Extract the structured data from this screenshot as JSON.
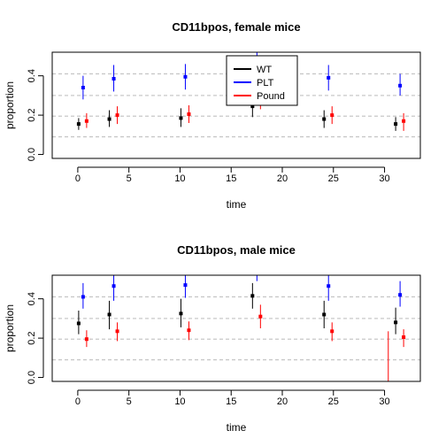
{
  "chart_data": [
    {
      "type": "scatter",
      "title": "CD11bpos, female mice",
      "xlabel": "time",
      "ylabel": "proportion",
      "xlim": [
        -2.5,
        33.5
      ],
      "ylim": [
        -0.02,
        0.52
      ],
      "xticks": [
        0,
        5,
        10,
        15,
        20,
        25,
        30
      ],
      "xtick_labels": [
        "0",
        "5",
        "10",
        "15",
        "20",
        "25",
        "30"
      ],
      "yticks": [
        0.0,
        0.2,
        0.4
      ],
      "ytick_labels": [
        "0.0",
        "0.2",
        "0.4"
      ],
      "hlines": [
        0.09,
        0.195,
        0.3,
        0.41
      ],
      "legend": {
        "placement": "top-center",
        "entries": [
          {
            "name": "WT",
            "color": "#000000"
          },
          {
            "name": "PLT",
            "color": "#0000ff"
          },
          {
            "name": "Pound",
            "color": "#ff0000"
          }
        ]
      },
      "series": [
        {
          "name": "WT",
          "color": "#000000",
          "x": [
            0,
            3,
            10,
            17,
            24,
            31
          ],
          "y": [
            0.155,
            0.18,
            0.185,
            0.245,
            0.18,
            0.155
          ],
          "lo": [
            0.125,
            0.14,
            0.14,
            0.19,
            0.135,
            0.12
          ],
          "hi": [
            0.185,
            0.225,
            0.235,
            0.295,
            0.225,
            0.19
          ]
        },
        {
          "name": "PLT",
          "color": "#0000ff",
          "x": [
            0,
            3,
            10,
            17,
            24,
            31
          ],
          "y": [
            0.34,
            0.385,
            0.395,
            0.49,
            0.39,
            0.35
          ],
          "lo": [
            0.28,
            0.32,
            0.33,
            0.43,
            0.325,
            0.3
          ],
          "hi": [
            0.4,
            0.455,
            0.46,
            0.53,
            0.455,
            0.41
          ]
        },
        {
          "name": "Pound",
          "color": "#ff0000",
          "x": [
            0,
            3,
            10,
            17,
            24,
            31
          ],
          "y": [
            0.17,
            0.2,
            0.205,
            0.28,
            0.2,
            0.17
          ],
          "lo": [
            0.135,
            0.155,
            0.16,
            0.23,
            0.155,
            0.12
          ],
          "hi": [
            0.21,
            0.245,
            0.25,
            0.33,
            0.245,
            0.21
          ]
        }
      ]
    },
    {
      "type": "scatter",
      "title": "CD11bpos, male mice",
      "xlabel": "time",
      "ylabel": "proportion",
      "xlim": [
        -2.5,
        33.5
      ],
      "ylim": [
        -0.02,
        0.52
      ],
      "xticks": [
        0,
        5,
        10,
        15,
        20,
        25,
        30
      ],
      "xtick_labels": [
        "0",
        "5",
        "10",
        "15",
        "20",
        "25",
        "30"
      ],
      "yticks": [
        0.0,
        0.2,
        0.4
      ],
      "ytick_labels": [
        "0.0",
        "0.2",
        "0.4"
      ],
      "hlines": [
        0.09,
        0.195,
        0.3,
        0.41
      ],
      "series": [
        {
          "name": "WT",
          "color": "#000000",
          "x": [
            0,
            3,
            10,
            17,
            24,
            31
          ],
          "y": [
            0.275,
            0.32,
            0.325,
            0.415,
            0.32,
            0.28
          ],
          "lo": [
            0.22,
            0.245,
            0.255,
            0.35,
            0.25,
            0.22
          ],
          "hi": [
            0.34,
            0.39,
            0.4,
            0.48,
            0.39,
            0.355
          ]
        },
        {
          "name": "PLT",
          "color": "#0000ff",
          "x": [
            0,
            3,
            10,
            17,
            24,
            31
          ],
          "y": [
            0.41,
            0.465,
            0.47,
            0.55,
            0.465,
            0.42
          ],
          "lo": [
            0.35,
            0.39,
            0.405,
            0.49,
            0.39,
            0.36
          ],
          "hi": [
            0.48,
            0.535,
            0.535,
            0.6,
            0.535,
            0.49
          ]
        },
        {
          "name": "Pound",
          "color": "#ff0000",
          "x": [
            0,
            3,
            10,
            17,
            24,
            31
          ],
          "y": [
            0.195,
            0.235,
            0.24,
            0.31,
            0.235,
            0.205
          ],
          "lo": [
            0.155,
            0.185,
            0.19,
            0.25,
            0.185,
            0.155
          ],
          "hi": [
            0.24,
            0.28,
            0.285,
            0.37,
            0.28,
            0.245
          ]
        },
        {
          "name": "Pound",
          "color": "#ff0000",
          "x": [
            29.5
          ],
          "y": [
            -0.05
          ],
          "lo": [
            -0.3
          ],
          "hi": [
            0.235
          ]
        }
      ]
    }
  ]
}
